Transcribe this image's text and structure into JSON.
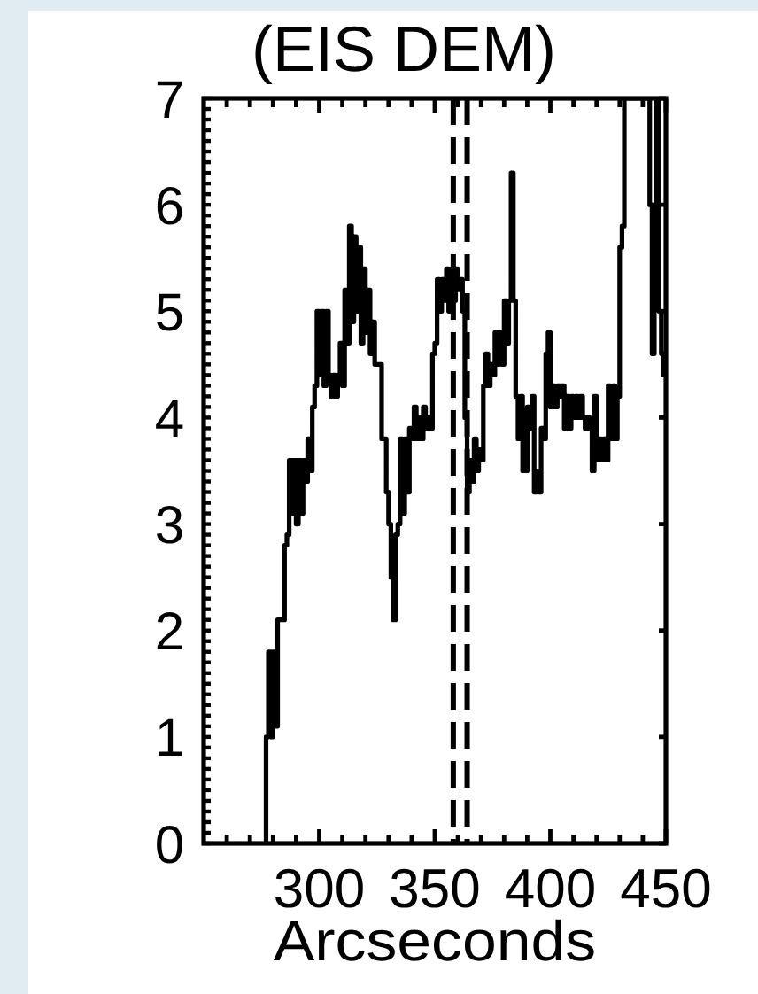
{
  "chart_data": {
    "type": "step",
    "title": "(EIS DEM)",
    "xlabel": "Arcseconds",
    "color": "#000000",
    "x": [
      276,
      277,
      278,
      279,
      280,
      281,
      282,
      284,
      285,
      286,
      287,
      288,
      289,
      290,
      291,
      292,
      293,
      294,
      295,
      296,
      297,
      298,
      299,
      300,
      301,
      302,
      303,
      304,
      305,
      306,
      307,
      308,
      309,
      310,
      311,
      312,
      313,
      314,
      315,
      316,
      317,
      318,
      319,
      320,
      321,
      322,
      323,
      324,
      326,
      327,
      329,
      330,
      331,
      332,
      333,
      334,
      335,
      336,
      337,
      338,
      339,
      340,
      341,
      342,
      343,
      344,
      345,
      346,
      347,
      348,
      349,
      350,
      351,
      352,
      353,
      354,
      355,
      356,
      357,
      358,
      359,
      360,
      361,
      362,
      363,
      364,
      365,
      366,
      367,
      368,
      369,
      370,
      371,
      372,
      373,
      374,
      375,
      376,
      377,
      378,
      379,
      380,
      381,
      382,
      383,
      384,
      385,
      386,
      387,
      388,
      389,
      390,
      391,
      392,
      393,
      394,
      395,
      396,
      397,
      398,
      399,
      400,
      401,
      402,
      403,
      404,
      405,
      406,
      407,
      408,
      409,
      410,
      411,
      412,
      413,
      414,
      415,
      416,
      417,
      418,
      419,
      420,
      421,
      422,
      423,
      424,
      425,
      426,
      427,
      428,
      429,
      430,
      431,
      432,
      443,
      444,
      445,
      446,
      447,
      448,
      449,
      450
    ],
    "values": [
      0,
      1.0,
      1.8,
      1.0,
      1.8,
      1.1,
      2.1,
      2.1,
      2.8,
      2.9,
      3.6,
      3.1,
      3.6,
      3.0,
      3.6,
      3.1,
      3.6,
      3.4,
      3.8,
      3.5,
      4.1,
      4.3,
      5.0,
      4.4,
      5.0,
      4.3,
      5.0,
      4.4,
      4.2,
      4.4,
      4.2,
      4.4,
      4.7,
      4.3,
      5.2,
      4.7,
      5.8,
      4.9,
      5.7,
      5.0,
      5.6,
      4.7,
      5.4,
      4.8,
      5.2,
      4.6,
      4.9,
      4.5,
      4.5,
      3.8,
      3.3,
      3.0,
      2.5,
      2.1,
      2.9,
      3.0,
      3.8,
      3.1,
      3.8,
      3.3,
      3.9,
      3.8,
      4.1,
      3.8,
      4.0,
      3.8,
      4.1,
      3.9,
      4.0,
      3.9,
      4.6,
      4.7,
      5.3,
      5.0,
      5.3,
      5.1,
      5.4,
      5.0,
      5.4,
      5.1,
      5.4,
      5.2,
      5.3,
      5.0,
      4.0,
      3.3,
      3.6,
      3.4,
      3.8,
      3.5,
      3.7,
      3.6,
      4.3,
      4.6,
      4.3,
      4.5,
      4.4,
      4.8,
      4.5,
      4.8,
      4.5,
      5.1,
      4.7,
      5.1,
      6.3,
      5.1,
      4.2,
      3.8,
      4.2,
      3.5,
      3.5,
      4.1,
      3.9,
      4.2,
      3.3,
      3.5,
      3.3,
      3.9,
      3.8,
      4.6,
      4.8,
      4.1,
      4.3,
      4.1,
      4.3,
      4.2,
      4.3,
      3.9,
      4.2,
      3.9,
      4.2,
      4.0,
      4.2,
      4.0,
      4.2,
      4.0,
      3.9,
      4.0,
      3.9,
      3.5,
      4.2,
      3.6,
      3.8,
      3.6,
      3.8,
      3.6,
      4.3,
      3.8,
      4.3,
      3.8,
      4.2,
      5.6,
      5.8,
      7,
      6.0,
      4.6,
      6.0,
      7,
      5.0,
      4.6,
      4.4,
      4.5
    ],
    "xlim": [
      250,
      450
    ],
    "xticks": [
      {
        "value": 260,
        "label": null
      },
      {
        "value": 270,
        "label": null
      },
      {
        "value": 280,
        "label": null
      },
      {
        "value": 290,
        "label": null
      },
      300,
      {
        "value": 310,
        "label": null
      },
      {
        "value": 320,
        "label": null
      },
      {
        "value": 330,
        "label": null
      },
      {
        "value": 340,
        "label": null
      },
      350,
      {
        "value": 360,
        "label": null
      },
      {
        "value": 370,
        "label": null
      },
      {
        "value": 380,
        "label": null
      },
      {
        "value": 390,
        "label": null
      },
      400,
      {
        "value": 410,
        "label": null
      },
      {
        "value": 420,
        "label": null
      },
      {
        "value": 430,
        "label": null
      },
      {
        "value": 440,
        "label": null
      },
      450
    ],
    "ylim": [
      0,
      7
    ],
    "yticks": [
      0,
      {
        "value": 0.1,
        "label": null
      },
      {
        "value": 0.2,
        "label": null
      },
      {
        "value": 0.3,
        "label": null
      },
      {
        "value": 0.4,
        "label": null
      },
      {
        "value": 0.5,
        "label": null
      },
      {
        "value": 0.6,
        "label": null
      },
      {
        "value": 0.7,
        "label": null
      },
      {
        "value": 0.8,
        "label": null
      },
      {
        "value": 0.9,
        "label": null
      },
      1,
      {
        "value": 1.1,
        "label": null
      },
      {
        "value": 1.2,
        "label": null
      },
      {
        "value": 1.3,
        "label": null
      },
      {
        "value": 1.4,
        "label": null
      },
      {
        "value": 1.5,
        "label": null
      },
      {
        "value": 1.6,
        "label": null
      },
      {
        "value": 1.7,
        "label": null
      },
      {
        "value": 1.8,
        "label": null
      },
      {
        "value": 1.9,
        "label": null
      },
      2,
      {
        "value": 2.1,
        "label": null
      },
      {
        "value": 2.2,
        "label": null
      },
      {
        "value": 2.3,
        "label": null
      },
      {
        "value": 2.4,
        "label": null
      },
      {
        "value": 2.5,
        "label": null
      },
      {
        "value": 2.6,
        "label": null
      },
      {
        "value": 2.7,
        "label": null
      },
      {
        "value": 2.8,
        "label": null
      },
      {
        "value": 2.9,
        "label": null
      },
      3,
      {
        "value": 3.1,
        "label": null
      },
      {
        "value": 3.2,
        "label": null
      },
      {
        "value": 3.3,
        "label": null
      },
      {
        "value": 3.4,
        "label": null
      },
      {
        "value": 3.5,
        "label": null
      },
      {
        "value": 3.6,
        "label": null
      },
      {
        "value": 3.7,
        "label": null
      },
      {
        "value": 3.8,
        "label": null
      },
      {
        "value": 3.9,
        "label": null
      },
      4,
      {
        "value": 4.1,
        "label": null
      },
      {
        "value": 4.2,
        "label": null
      },
      {
        "value": 4.3,
        "label": null
      },
      {
        "value": 4.4,
        "label": null
      },
      {
        "value": 4.5,
        "label": null
      },
      {
        "value": 4.6,
        "label": null
      },
      {
        "value": 4.7,
        "label": null
      },
      {
        "value": 4.8,
        "label": null
      },
      {
        "value": 4.9,
        "label": null
      },
      5,
      {
        "value": 5.1,
        "label": null
      },
      {
        "value": 5.2,
        "label": null
      },
      {
        "value": 5.3,
        "label": null
      },
      {
        "value": 5.4,
        "label": null
      },
      {
        "value": 5.5,
        "label": null
      },
      {
        "value": 5.6,
        "label": null
      },
      {
        "value": 5.7,
        "label": null
      },
      {
        "value": 5.8,
        "label": null
      },
      {
        "value": 5.9,
        "label": null
      },
      6,
      {
        "value": 6.1,
        "label": null
      },
      {
        "value": 6.2,
        "label": null
      },
      {
        "value": 6.3,
        "label": null
      },
      {
        "value": 6.4,
        "label": null
      },
      {
        "value": 6.5,
        "label": null
      },
      {
        "value": 6.6,
        "label": null
      },
      {
        "value": 6.7,
        "label": null
      },
      {
        "value": 6.8,
        "label": null
      },
      {
        "value": 6.9,
        "label": null
      },
      7
    ],
    "ref_lines": [
      {
        "axis": "x",
        "value": 358,
        "color": "#000000",
        "line_style": "dashed"
      },
      {
        "axis": "x",
        "value": 364,
        "color": "#000000",
        "line_style": "dashed"
      }
    ]
  }
}
